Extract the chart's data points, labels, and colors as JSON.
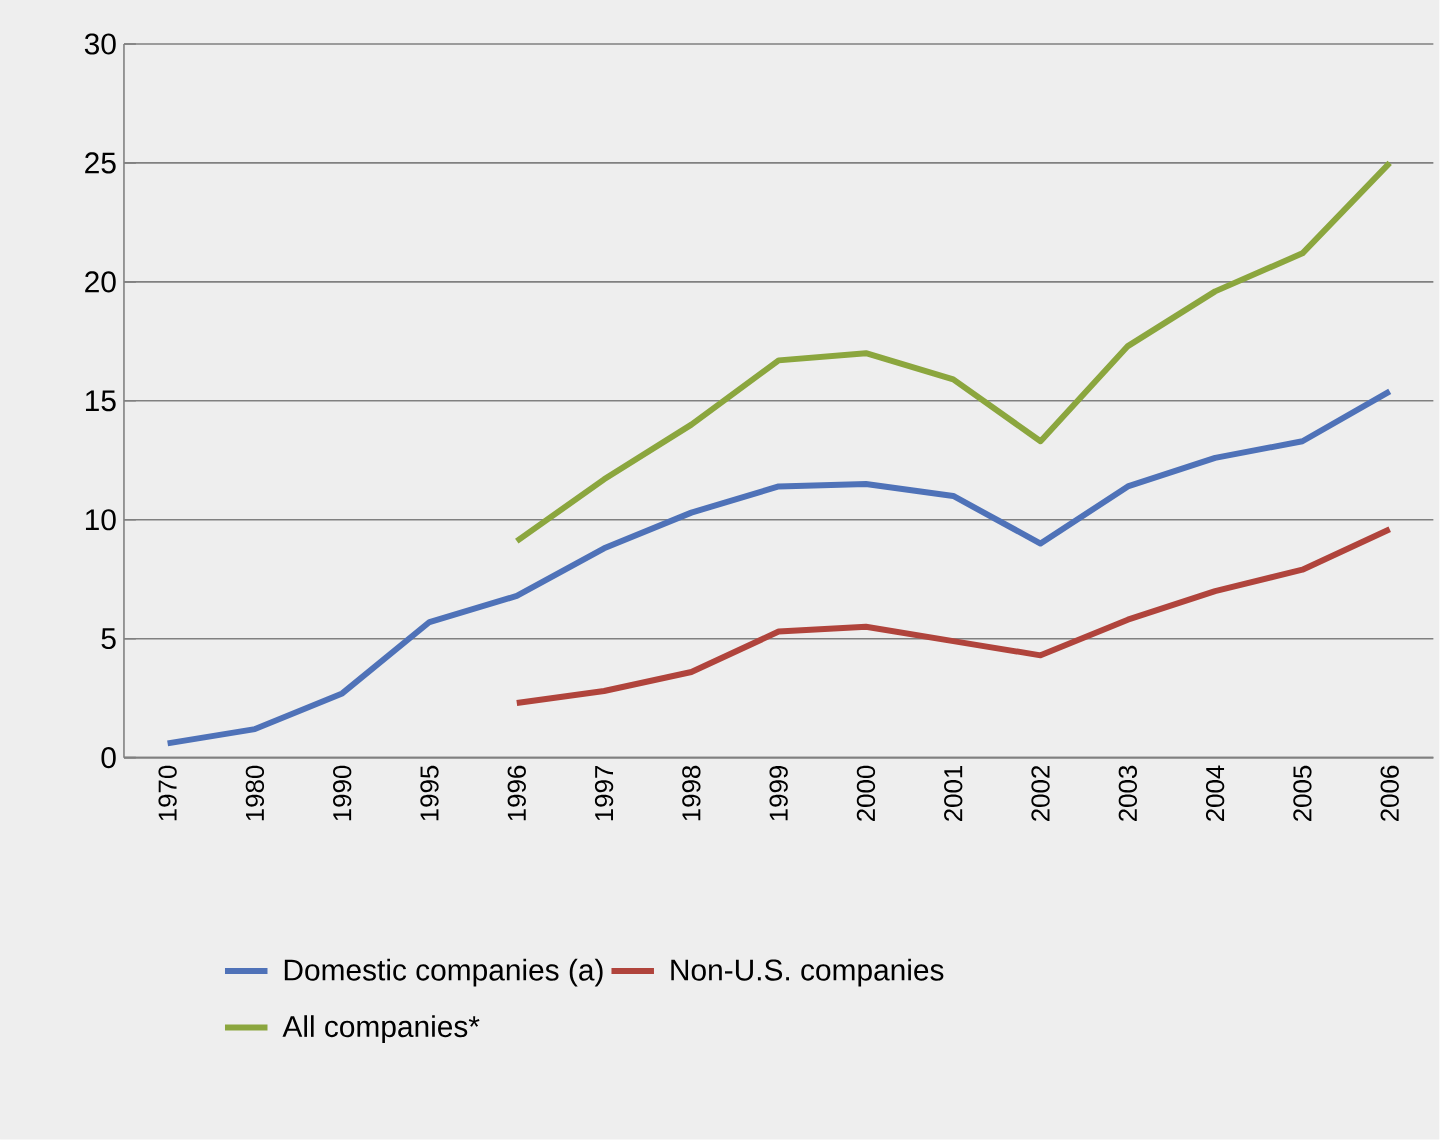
{
  "chart_data": {
    "type": "line",
    "categories": [
      "1970",
      "1980",
      "1990",
      "1995",
      "1996",
      "1997",
      "1998",
      "1999",
      "2000",
      "2001",
      "2002",
      "2003",
      "2004",
      "2005",
      "2006"
    ],
    "series": [
      {
        "name": "Domestic companies (a)",
        "color": "#4f72b8",
        "values": [
          0.6,
          1.2,
          2.7,
          5.7,
          6.8,
          8.8,
          10.3,
          11.4,
          11.5,
          11.0,
          9.0,
          11.4,
          12.6,
          13.3,
          15.4
        ]
      },
      {
        "name": "Non-U.S. companies",
        "color": "#b0443c",
        "values": [
          null,
          null,
          null,
          null,
          2.3,
          2.8,
          3.6,
          5.3,
          5.5,
          4.9,
          4.3,
          5.8,
          7.0,
          7.9,
          9.6
        ]
      },
      {
        "name": "All companies*",
        "color": "#8ba63e",
        "values": [
          null,
          null,
          null,
          null,
          9.1,
          11.7,
          14.0,
          16.7,
          17.0,
          15.9,
          13.3,
          17.3,
          19.6,
          21.2,
          25.0
        ]
      }
    ],
    "ylim": [
      0,
      30
    ],
    "yticks": [
      0,
      5,
      10,
      15,
      20,
      25,
      30
    ],
    "grid": "y",
    "legend": "bottom",
    "marker": "none",
    "line_style": "solid"
  }
}
